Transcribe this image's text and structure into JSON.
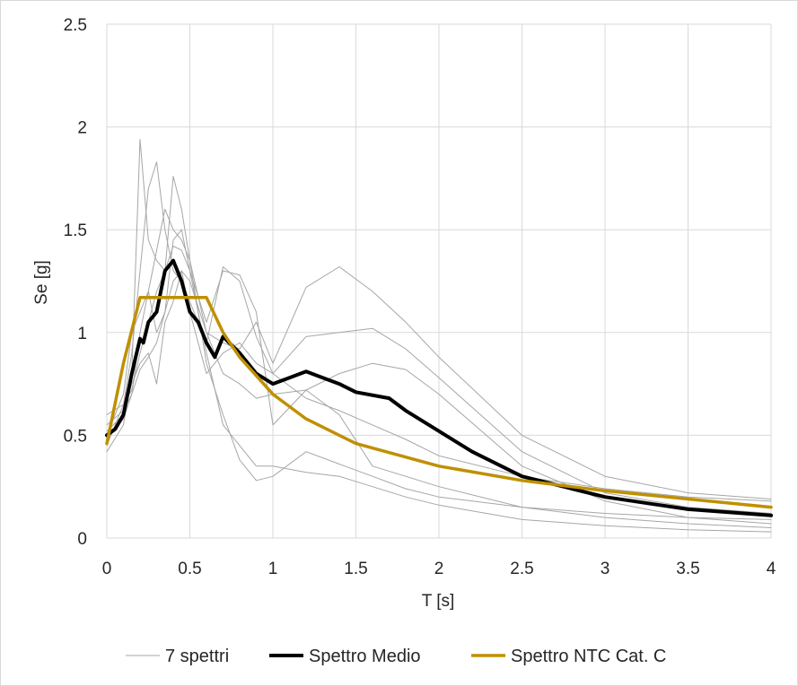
{
  "chart_data": {
    "type": "line",
    "title": "",
    "xlabel": "T [s]",
    "ylabel": "Se [g]",
    "xlim": [
      0,
      4
    ],
    "ylim": [
      0,
      2.5
    ],
    "xticks": [
      "0",
      "0.5",
      "1",
      "1.5",
      "2",
      "2.5",
      "3",
      "3.5",
      "4"
    ],
    "yticks": [
      "0",
      "0.5",
      "1",
      "1.5",
      "2",
      "2.5"
    ],
    "grid": true,
    "legend_position": "bottom",
    "legend": [
      "7 spettri",
      "Spettro Medio",
      "Spettro NTC Cat. C"
    ],
    "colors": {
      "spettri": "#a6a6a6",
      "medio": "#000000",
      "ntc": "#bf9000"
    },
    "series": [
      {
        "name": "7 spettri",
        "group": "7 spettri",
        "x": [
          0,
          0.1,
          0.15,
          0.2,
          0.25,
          0.3,
          0.35,
          0.4,
          0.45,
          0.5,
          0.6,
          0.7,
          0.8,
          0.9,
          1,
          1.2,
          1.4,
          1.6,
          1.8,
          2,
          2.5,
          3,
          3.5,
          4
        ],
        "y": [
          0.45,
          0.65,
          0.9,
          1.3,
          1.7,
          1.83,
          1.5,
          1.3,
          1.25,
          1.15,
          0.95,
          1.32,
          1.25,
          0.98,
          0.8,
          0.68,
          0.62,
          0.55,
          0.48,
          0.4,
          0.3,
          0.24,
          0.2,
          0.18
        ]
      },
      {
        "name": "7 spettri",
        "group": "7 spettri",
        "x": [
          0,
          0.1,
          0.15,
          0.2,
          0.25,
          0.3,
          0.35,
          0.4,
          0.45,
          0.5,
          0.6,
          0.7,
          0.8,
          0.9,
          1,
          1.2,
          1.4,
          1.6,
          1.8,
          2,
          2.5,
          3,
          3.5,
          4
        ],
        "y": [
          0.42,
          0.55,
          0.8,
          1.94,
          1.45,
          1.35,
          1.3,
          1.76,
          1.6,
          1.35,
          0.85,
          0.6,
          0.38,
          0.28,
          0.3,
          0.42,
          0.36,
          0.3,
          0.24,
          0.2,
          0.15,
          0.12,
          0.1,
          0.09
        ]
      },
      {
        "name": "7 spettri",
        "group": "7 spettri",
        "x": [
          0,
          0.1,
          0.15,
          0.2,
          0.25,
          0.3,
          0.35,
          0.4,
          0.45,
          0.5,
          0.6,
          0.7,
          0.8,
          0.9,
          1,
          1.2,
          1.4,
          1.6,
          1.8,
          2,
          2.5,
          3,
          3.5,
          4
        ],
        "y": [
          0.5,
          0.7,
          1.0,
          1.1,
          1.2,
          1.4,
          1.6,
          1.5,
          1.45,
          1.35,
          1.0,
          0.95,
          0.92,
          1.05,
          0.85,
          1.22,
          1.32,
          1.2,
          1.05,
          0.88,
          0.5,
          0.3,
          0.22,
          0.19
        ]
      },
      {
        "name": "7 spettri",
        "group": "7 spettri",
        "x": [
          0,
          0.1,
          0.15,
          0.2,
          0.25,
          0.3,
          0.35,
          0.4,
          0.45,
          0.5,
          0.6,
          0.7,
          0.8,
          0.9,
          1,
          1.2,
          1.4,
          1.6,
          1.8,
          2,
          2.5,
          3,
          3.5,
          4
        ],
        "y": [
          0.6,
          0.65,
          0.72,
          0.9,
          1.05,
          1.2,
          1.3,
          1.42,
          1.4,
          1.3,
          1.05,
          1.3,
          1.28,
          1.1,
          0.55,
          0.72,
          0.6,
          0.35,
          0.3,
          0.25,
          0.15,
          0.1,
          0.07,
          0.05
        ]
      },
      {
        "name": "7 spettri",
        "group": "7 spettri",
        "x": [
          0,
          0.1,
          0.15,
          0.2,
          0.25,
          0.3,
          0.35,
          0.4,
          0.45,
          0.5,
          0.6,
          0.7,
          0.8,
          0.9,
          1,
          1.2,
          1.4,
          1.6,
          1.8,
          2,
          2.5,
          3,
          3.5,
          4
        ],
        "y": [
          0.48,
          0.58,
          0.7,
          1.0,
          1.2,
          1.0,
          1.1,
          1.25,
          1.3,
          1.1,
          0.8,
          0.9,
          0.95,
          0.85,
          0.8,
          0.98,
          1.0,
          1.02,
          0.92,
          0.78,
          0.42,
          0.22,
          0.15,
          0.12
        ]
      },
      {
        "name": "7 spettri",
        "group": "7 spettri",
        "x": [
          0,
          0.1,
          0.15,
          0.2,
          0.25,
          0.3,
          0.35,
          0.4,
          0.45,
          0.5,
          0.6,
          0.7,
          0.8,
          0.9,
          1,
          1.2,
          1.4,
          1.6,
          1.8,
          2,
          2.5,
          3,
          3.5,
          4
        ],
        "y": [
          0.52,
          0.6,
          0.75,
          0.85,
          0.9,
          0.75,
          1.05,
          1.15,
          1.3,
          1.25,
          1.0,
          0.8,
          0.75,
          0.68,
          0.7,
          0.72,
          0.8,
          0.85,
          0.82,
          0.7,
          0.35,
          0.18,
          0.1,
          0.07
        ]
      },
      {
        "name": "7 spettri",
        "group": "7 spettri",
        "x": [
          0,
          0.1,
          0.15,
          0.2,
          0.25,
          0.3,
          0.35,
          0.4,
          0.45,
          0.5,
          0.6,
          0.7,
          0.8,
          0.9,
          1,
          1.2,
          1.4,
          1.6,
          1.8,
          2,
          2.5,
          3,
          3.5,
          4
        ],
        "y": [
          0.55,
          0.62,
          0.7,
          0.82,
          0.88,
          0.95,
          1.1,
          1.45,
          1.5,
          1.3,
          0.9,
          0.55,
          0.45,
          0.35,
          0.35,
          0.32,
          0.3,
          0.25,
          0.2,
          0.16,
          0.09,
          0.06,
          0.04,
          0.03
        ]
      },
      {
        "name": "Spettro Medio",
        "group": "Spettro Medio",
        "x": [
          0,
          0.05,
          0.1,
          0.15,
          0.2,
          0.22,
          0.25,
          0.3,
          0.35,
          0.4,
          0.45,
          0.5,
          0.55,
          0.6,
          0.65,
          0.7,
          0.8,
          0.9,
          1,
          1.1,
          1.2,
          1.3,
          1.4,
          1.5,
          1.7,
          1.8,
          2,
          2.2,
          2.5,
          3,
          3.5,
          4
        ],
        "y": [
          0.5,
          0.53,
          0.6,
          0.8,
          0.97,
          0.95,
          1.05,
          1.1,
          1.3,
          1.35,
          1.25,
          1.1,
          1.05,
          0.95,
          0.88,
          0.98,
          0.9,
          0.8,
          0.75,
          0.78,
          0.81,
          0.78,
          0.75,
          0.71,
          0.68,
          0.62,
          0.52,
          0.42,
          0.3,
          0.2,
          0.14,
          0.11
        ]
      },
      {
        "name": "Spettro NTC Cat. C",
        "group": "Spettro NTC Cat. C",
        "x": [
          0,
          0.1,
          0.2,
          0.6,
          0.7,
          0.8,
          1,
          1.2,
          1.5,
          2,
          2.5,
          3,
          3.5,
          4
        ],
        "y": [
          0.46,
          0.85,
          1.17,
          1.17,
          1.0,
          0.88,
          0.7,
          0.58,
          0.46,
          0.35,
          0.28,
          0.23,
          0.19,
          0.15
        ]
      }
    ]
  }
}
